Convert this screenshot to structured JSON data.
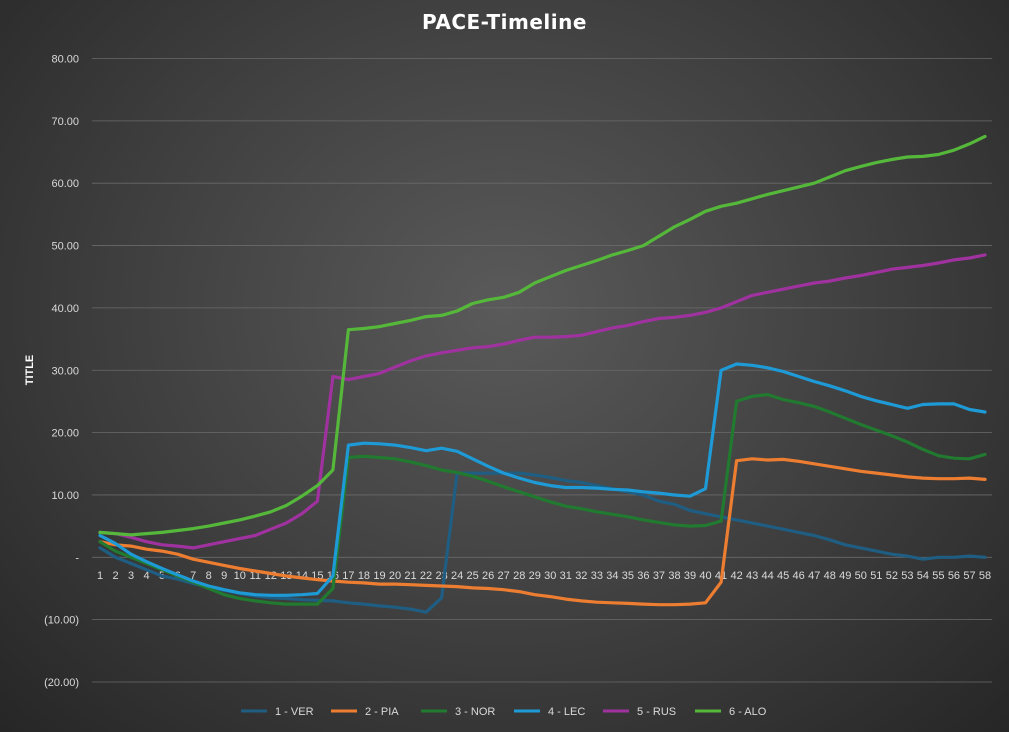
{
  "chart_data": {
    "type": "line",
    "title": "PACE-Timeline",
    "ylabel": "TITLE",
    "xlabel": "",
    "ylim": [
      -20,
      80
    ],
    "y_ticks": [
      80,
      70,
      60,
      50,
      40,
      30,
      20,
      10,
      0,
      -10,
      -20
    ],
    "y_tick_labels": [
      "80.00",
      "70.00",
      "60.00",
      "50.00",
      "40.00",
      "30.00",
      "20.00",
      "10.00",
      "-",
      "(10.00)",
      "(20.00)"
    ],
    "grid": true,
    "legend_position": "bottom",
    "x": [
      1,
      2,
      3,
      4,
      5,
      6,
      7,
      8,
      9,
      10,
      11,
      12,
      13,
      14,
      15,
      16,
      17,
      18,
      19,
      20,
      21,
      22,
      23,
      24,
      25,
      26,
      27,
      28,
      29,
      30,
      31,
      32,
      33,
      34,
      35,
      36,
      37,
      38,
      39,
      40,
      41,
      42,
      43,
      44,
      45,
      46,
      47,
      48,
      49,
      50,
      51,
      52,
      53,
      54,
      55,
      56,
      57,
      58
    ],
    "series": [
      {
        "name": "1 - VER",
        "color": "#1f5e82",
        "values": [
          1.5,
          0,
          -1,
          -2,
          -3,
          -3.5,
          -4.2,
          -4.8,
          -5.3,
          -5.8,
          -6.2,
          -6.5,
          -6.6,
          -6.8,
          -6.9,
          -7,
          -7.3,
          -7.5,
          -7.8,
          -8,
          -8.3,
          -8.8,
          -6.5,
          13.5,
          13.5,
          13.5,
          13.5,
          13.5,
          13.2,
          12.8,
          12.3,
          12,
          11.5,
          11,
          10.5,
          10,
          9,
          8.5,
          7.5,
          7,
          6.5,
          6,
          5.5,
          5,
          4.5,
          4,
          3.5,
          2.8,
          2,
          1.5,
          1,
          0.5,
          0.2,
          -0.3,
          0,
          0,
          0.2,
          0
        ]
      },
      {
        "name": "2 - PIA",
        "color": "#ed7d31",
        "values": [
          2.5,
          2,
          1.8,
          1.3,
          1,
          0.5,
          -0.3,
          -0.8,
          -1.3,
          -1.8,
          -2.2,
          -2.6,
          -3,
          -3.3,
          -3.6,
          -3.8,
          -4,
          -4.1,
          -4.3,
          -4.3,
          -4.4,
          -4.5,
          -4.6,
          -4.7,
          -4.9,
          -5,
          -5.2,
          -5.5,
          -6,
          -6.3,
          -6.7,
          -7,
          -7.2,
          -7.3,
          -7.4,
          -7.5,
          -7.6,
          -7.6,
          -7.5,
          -7.3,
          -4,
          15.5,
          15.8,
          15.6,
          15.7,
          15.4,
          15,
          14.6,
          14.2,
          13.8,
          13.5,
          13.2,
          12.9,
          12.7,
          12.6,
          12.6,
          12.7,
          12.5
        ]
      },
      {
        "name": "3 - NOR",
        "color": "#217a2f",
        "values": [
          2.5,
          1,
          0,
          -1,
          -2,
          -3,
          -4,
          -5,
          -6,
          -6.6,
          -7,
          -7.3,
          -7.5,
          -7.5,
          -7.5,
          -5,
          16,
          16.2,
          16,
          15.8,
          15.3,
          14.7,
          14,
          13.6,
          13,
          12.2,
          11.3,
          10.5,
          9.7,
          8.9,
          8.2,
          7.8,
          7.3,
          6.9,
          6.5,
          6,
          5.6,
          5.2,
          5,
          5.1,
          5.8,
          25,
          25.8,
          26.1,
          25.3,
          24.8,
          24.2,
          23.3,
          22.3,
          21.3,
          20.4,
          19.5,
          18.5,
          17.3,
          16.3,
          15.9,
          15.8,
          16.5
        ]
      },
      {
        "name": "4 - LEC",
        "color": "#1e9ad6",
        "values": [
          3.5,
          2.2,
          0.5,
          -0.7,
          -1.8,
          -2.8,
          -3.8,
          -4.6,
          -5.2,
          -5.7,
          -6,
          -6.1,
          -6.1,
          -6,
          -5.8,
          -3,
          18,
          18.3,
          18.2,
          18,
          17.6,
          17.1,
          17.5,
          17,
          15.8,
          14.6,
          13.5,
          12.7,
          12,
          11.5,
          11.2,
          11.2,
          11.1,
          10.9,
          10.8,
          10.5,
          10.3,
          10,
          9.8,
          11,
          30,
          31,
          30.8,
          30.4,
          29.8,
          29,
          28.2,
          27.5,
          26.7,
          25.8,
          25.1,
          24.5,
          23.9,
          24.5,
          24.6,
          24.6,
          23.7,
          23.3
        ]
      },
      {
        "name": "5 - RUS",
        "color": "#a032a0",
        "values": [
          4,
          3.8,
          3.2,
          2.5,
          2,
          1.8,
          1.5,
          2,
          2.5,
          3,
          3.5,
          4.5,
          5.5,
          7,
          9,
          29,
          28.5,
          29,
          29.5,
          30.5,
          31.5,
          32.3,
          32.8,
          33.2,
          33.6,
          33.8,
          34.2,
          34.8,
          35.3,
          35.3,
          35.4,
          35.6,
          36.2,
          36.8,
          37.2,
          37.8,
          38.3,
          38.5,
          38.8,
          39.3,
          40,
          41,
          42,
          42.5,
          43,
          43.5,
          44,
          44.3,
          44.8,
          45.2,
          45.7,
          46.2,
          46.5,
          46.8,
          47.2,
          47.7,
          48,
          48.5
        ]
      },
      {
        "name": "6 - ALO",
        "color": "#55b83a",
        "values": [
          4,
          3.8,
          3.6,
          3.8,
          4,
          4.3,
          4.6,
          5,
          5.5,
          6,
          6.6,
          7.3,
          8.3,
          9.8,
          11.5,
          14,
          36.5,
          36.7,
          37,
          37.5,
          38,
          38.6,
          38.8,
          39.5,
          40.7,
          41.3,
          41.7,
          42.5,
          44,
          45,
          46,
          46.8,
          47.6,
          48.5,
          49.2,
          50,
          51.5,
          53,
          54.2,
          55.5,
          56.3,
          56.8,
          57.5,
          58.2,
          58.8,
          59.4,
          60,
          61,
          62,
          62.7,
          63.3,
          63.8,
          64.2,
          64.3,
          64.6,
          65.3,
          66.3,
          67.5
        ]
      }
    ]
  }
}
